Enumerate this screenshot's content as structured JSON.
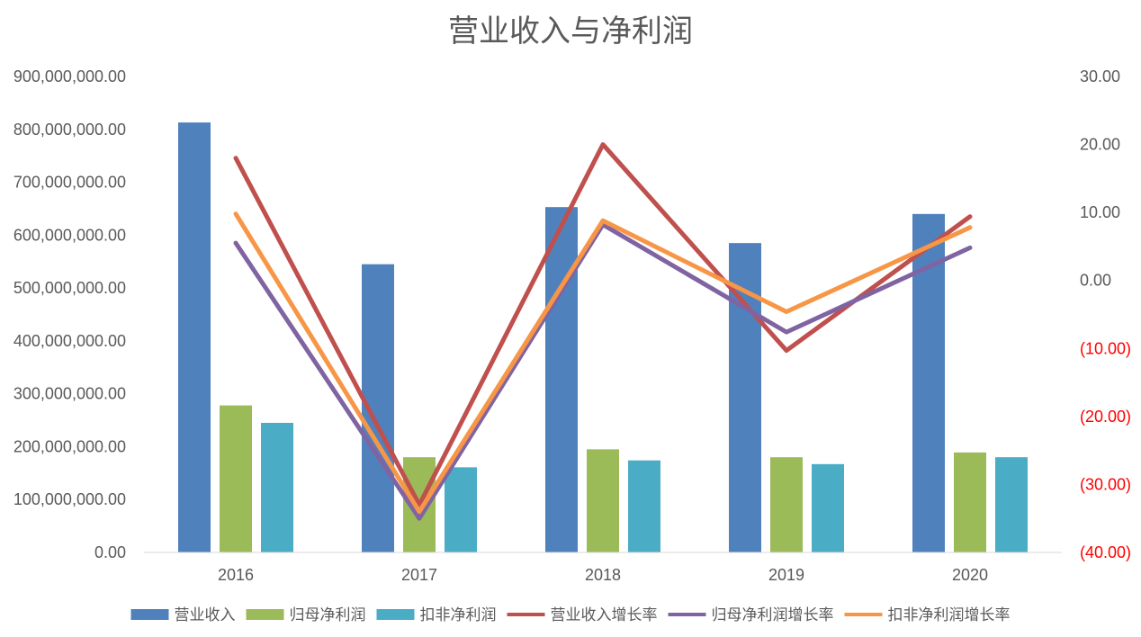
{
  "chart_data": {
    "type": "bar",
    "title": "营业收入与净利润",
    "categories": [
      "2016",
      "2017",
      "2018",
      "2019",
      "2020"
    ],
    "bar_series": [
      {
        "name": "营业收入",
        "color": "#4f81bd",
        "values": [
          813000000,
          545000000,
          653000000,
          585000000,
          640000000
        ]
      },
      {
        "name": "归母净利润",
        "color": "#9bbb59",
        "values": [
          278000000,
          180000000,
          195000000,
          180000000,
          189000000
        ]
      },
      {
        "name": "扣非净利润",
        "color": "#4bacc6",
        "values": [
          245000000,
          161000000,
          174000000,
          167000000,
          180000000
        ]
      }
    ],
    "line_series": [
      {
        "name": "营业收入增长率",
        "color": "#c0504d",
        "values": [
          18.0,
          -33.0,
          20.0,
          -10.3,
          9.4
        ]
      },
      {
        "name": "归母净利润增长率",
        "color": "#8064a2",
        "values": [
          5.5,
          -35.0,
          8.2,
          -7.6,
          4.8
        ]
      },
      {
        "name": "扣非净利润增长率",
        "color": "#f79646",
        "values": [
          9.8,
          -34.0,
          8.8,
          -4.6,
          7.8
        ]
      }
    ],
    "y_left": {
      "lim": [
        0,
        900000000
      ],
      "ticks": [
        0,
        100000000,
        200000000,
        300000000,
        400000000,
        500000000,
        600000000,
        700000000,
        800000000,
        900000000
      ],
      "tick_labels": [
        "0.00",
        "100,000,000.00",
        "200,000,000.00",
        "300,000,000.00",
        "400,000,000.00",
        "500,000,000.00",
        "600,000,000.00",
        "700,000,000.00",
        "800,000,000.00",
        "900,000,000.00"
      ]
    },
    "y_right": {
      "lim": [
        -40,
        30
      ],
      "ticks": [
        -40,
        -30,
        -20,
        -10,
        0,
        10,
        20,
        30
      ],
      "tick_labels": [
        "(40.00)",
        "(30.00)",
        "(20.00)",
        "(10.00)",
        "0.00",
        "10.00",
        "20.00",
        "30.00"
      ],
      "negative_color": "#ff0000"
    },
    "grid": false,
    "legend_position": "bottom"
  }
}
